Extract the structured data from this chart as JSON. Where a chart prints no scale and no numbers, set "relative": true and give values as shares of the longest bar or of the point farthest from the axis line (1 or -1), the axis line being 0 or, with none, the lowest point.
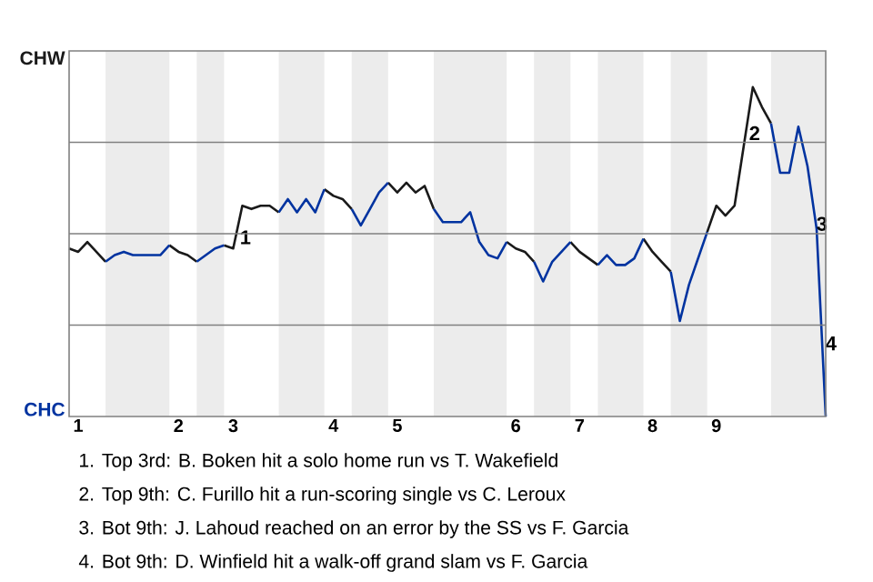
{
  "chart_data": {
    "type": "line",
    "relative": true,
    "categories": [
      null,
      "1",
      null,
      null,
      null,
      null,
      null,
      null,
      null,
      null,
      null,
      null,
      "2",
      null,
      null,
      null,
      null,
      null,
      "3",
      null,
      null,
      null,
      null,
      null,
      null,
      null,
      null,
      null,
      null,
      "4",
      null,
      null,
      null,
      null,
      null,
      null,
      "5",
      null,
      null,
      null,
      null,
      null,
      null,
      null,
      null,
      null,
      null,
      null,
      null,
      "6",
      null,
      null,
      null,
      null,
      null,
      null,
      "7",
      null,
      null,
      null,
      null,
      null,
      null,
      null,
      "8",
      null,
      null,
      null,
      null,
      null,
      null,
      "9",
      null,
      null,
      null,
      null,
      null,
      null,
      null,
      null,
      null,
      null,
      null,
      null
    ],
    "series": [
      {
        "color": "#1a1a1a",
        "values": [
          0.51,
          0.5,
          0.53,
          0.5,
          0.47,
          null,
          null,
          null,
          null,
          null,
          null,
          0.52,
          0.5,
          0.49,
          0.47,
          null,
          null,
          0.52,
          0.51,
          0.64,
          0.63,
          0.64,
          0.64,
          0.62,
          null,
          null,
          null,
          null,
          0.69,
          0.67,
          0.66,
          0.63,
          null,
          null,
          null,
          0.71,
          0.68,
          0.71,
          0.68,
          0.7,
          0.63,
          null,
          null,
          null,
          null,
          null,
          null,
          null,
          0.53,
          0.51,
          0.5,
          0.47,
          null,
          null,
          null,
          0.53,
          0.5,
          0.48,
          0.46,
          null,
          null,
          null,
          null,
          0.54,
          0.5,
          0.47,
          0.44,
          null,
          null,
          null,
          0.56,
          0.64,
          0.61,
          0.64,
          0.82,
          1,
          0.94,
          0.89,
          null,
          null,
          null,
          null,
          null,
          null
        ]
      },
      {
        "color": "#0033a0",
        "values": [
          null,
          null,
          null,
          null,
          0.47,
          0.49,
          0.5,
          0.49,
          0.49,
          0.49,
          0.49,
          0.52,
          null,
          null,
          0.47,
          0.49,
          0.51,
          0.52,
          null,
          null,
          null,
          null,
          null,
          0.62,
          0.66,
          0.62,
          0.66,
          0.62,
          0.69,
          null,
          null,
          0.63,
          0.58,
          0.63,
          0.68,
          0.71,
          null,
          null,
          null,
          null,
          0.63,
          0.59,
          0.59,
          0.59,
          0.62,
          0.53,
          0.49,
          0.48,
          0.53,
          null,
          null,
          0.47,
          0.41,
          0.47,
          0.5,
          0.53,
          null,
          null,
          0.46,
          0.49,
          0.46,
          0.46,
          0.48,
          0.54,
          null,
          null,
          0.44,
          0.29,
          0.4,
          0.48,
          0.56,
          null,
          null,
          null,
          null,
          null,
          null,
          0.89,
          0.74,
          0.74,
          0.88,
          0.76,
          0.57,
          0
        ]
      }
    ],
    "grid": "y",
    "marker": "none",
    "line_style": "solid",
    "annotations": [
      "CHW",
      "CHC",
      "1",
      "2",
      "3",
      "4",
      "1. Top 3rd: B. Boken hit a solo home run vs T. Wakefield",
      "2. Top 9th: C. Furillo hit a run-scoring single vs C. Leroux",
      "3. Bot 9th: J. Lahoud reached on an error by the SS vs F. Garcia",
      "4. Bot 9th: D. Winfield hit a walk-off grand slam vs F. Garcia"
    ]
  }
}
